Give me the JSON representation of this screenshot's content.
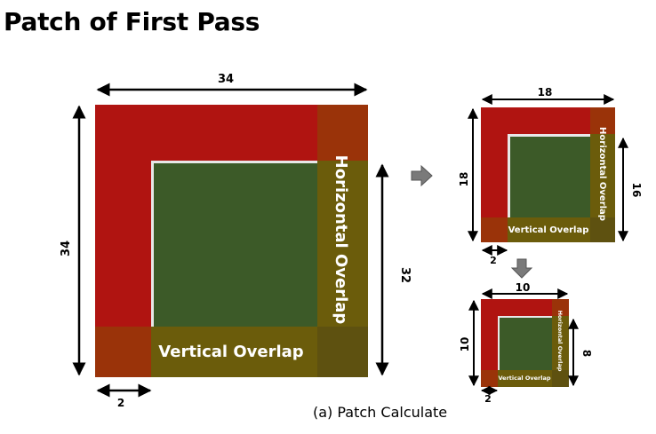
{
  "title": "Patch of First Pass",
  "caption": "(a) Patch Calculate",
  "colors": {
    "red": "#b01411",
    "green": "#3c5a28",
    "olive": "#6b5c0b",
    "corner": "#9a3309",
    "arrow": "#7a7a7a"
  },
  "large": {
    "width": "34",
    "height": "34",
    "inner": "32",
    "offset": "2",
    "vertical_label": "Vertical Overlap",
    "horizontal_label": "Horizontal Overlap"
  },
  "medium": {
    "width": "18",
    "height": "18",
    "inner": "16",
    "offset": "2",
    "vertical_label": "Vertical Overlap",
    "horizontal_label": "Horizontal Overlap"
  },
  "small": {
    "width": "10",
    "height": "10",
    "inner": "8",
    "offset": "2",
    "vertical_label": "Vertical Overlap",
    "horizontal_label": "Horizontal Overlap"
  }
}
